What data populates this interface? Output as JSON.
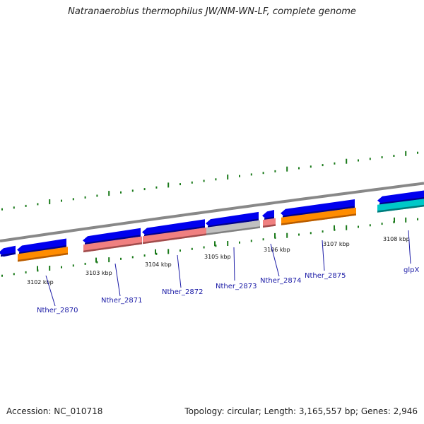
{
  "title": "Natranaerobius thermophilus JW/NM-WN-LF, complete genome",
  "footer": {
    "accession": "Accession: NC_010718",
    "topology": "Topology: circular; Length: 3,165,557 bp; Genes: 2,946"
  },
  "colors": {
    "forward_cds": "#0000ee",
    "reverse_cds": "#0000ee",
    "orange_feature": "#ff8c00",
    "salmon_feature": "#f08080",
    "gray_feature": "#c0c0c0",
    "cyan_feature": "#00c8c8",
    "backbone": "#888888",
    "gc_ticks": "#1a7a1a",
    "labels": "#1a1aa6"
  },
  "ticks": [
    "3102 kbp",
    "3103 kbp",
    "3104 kbp",
    "3105 kbp",
    "3106 kbp",
    "3107 kbp",
    "3108 kbp"
  ],
  "genes": [
    "Nther_2870",
    "Nther_2871",
    "Nther_2872",
    "Nther_2873",
    "Nther_2874",
    "Nther_2875",
    "glpX"
  ]
}
